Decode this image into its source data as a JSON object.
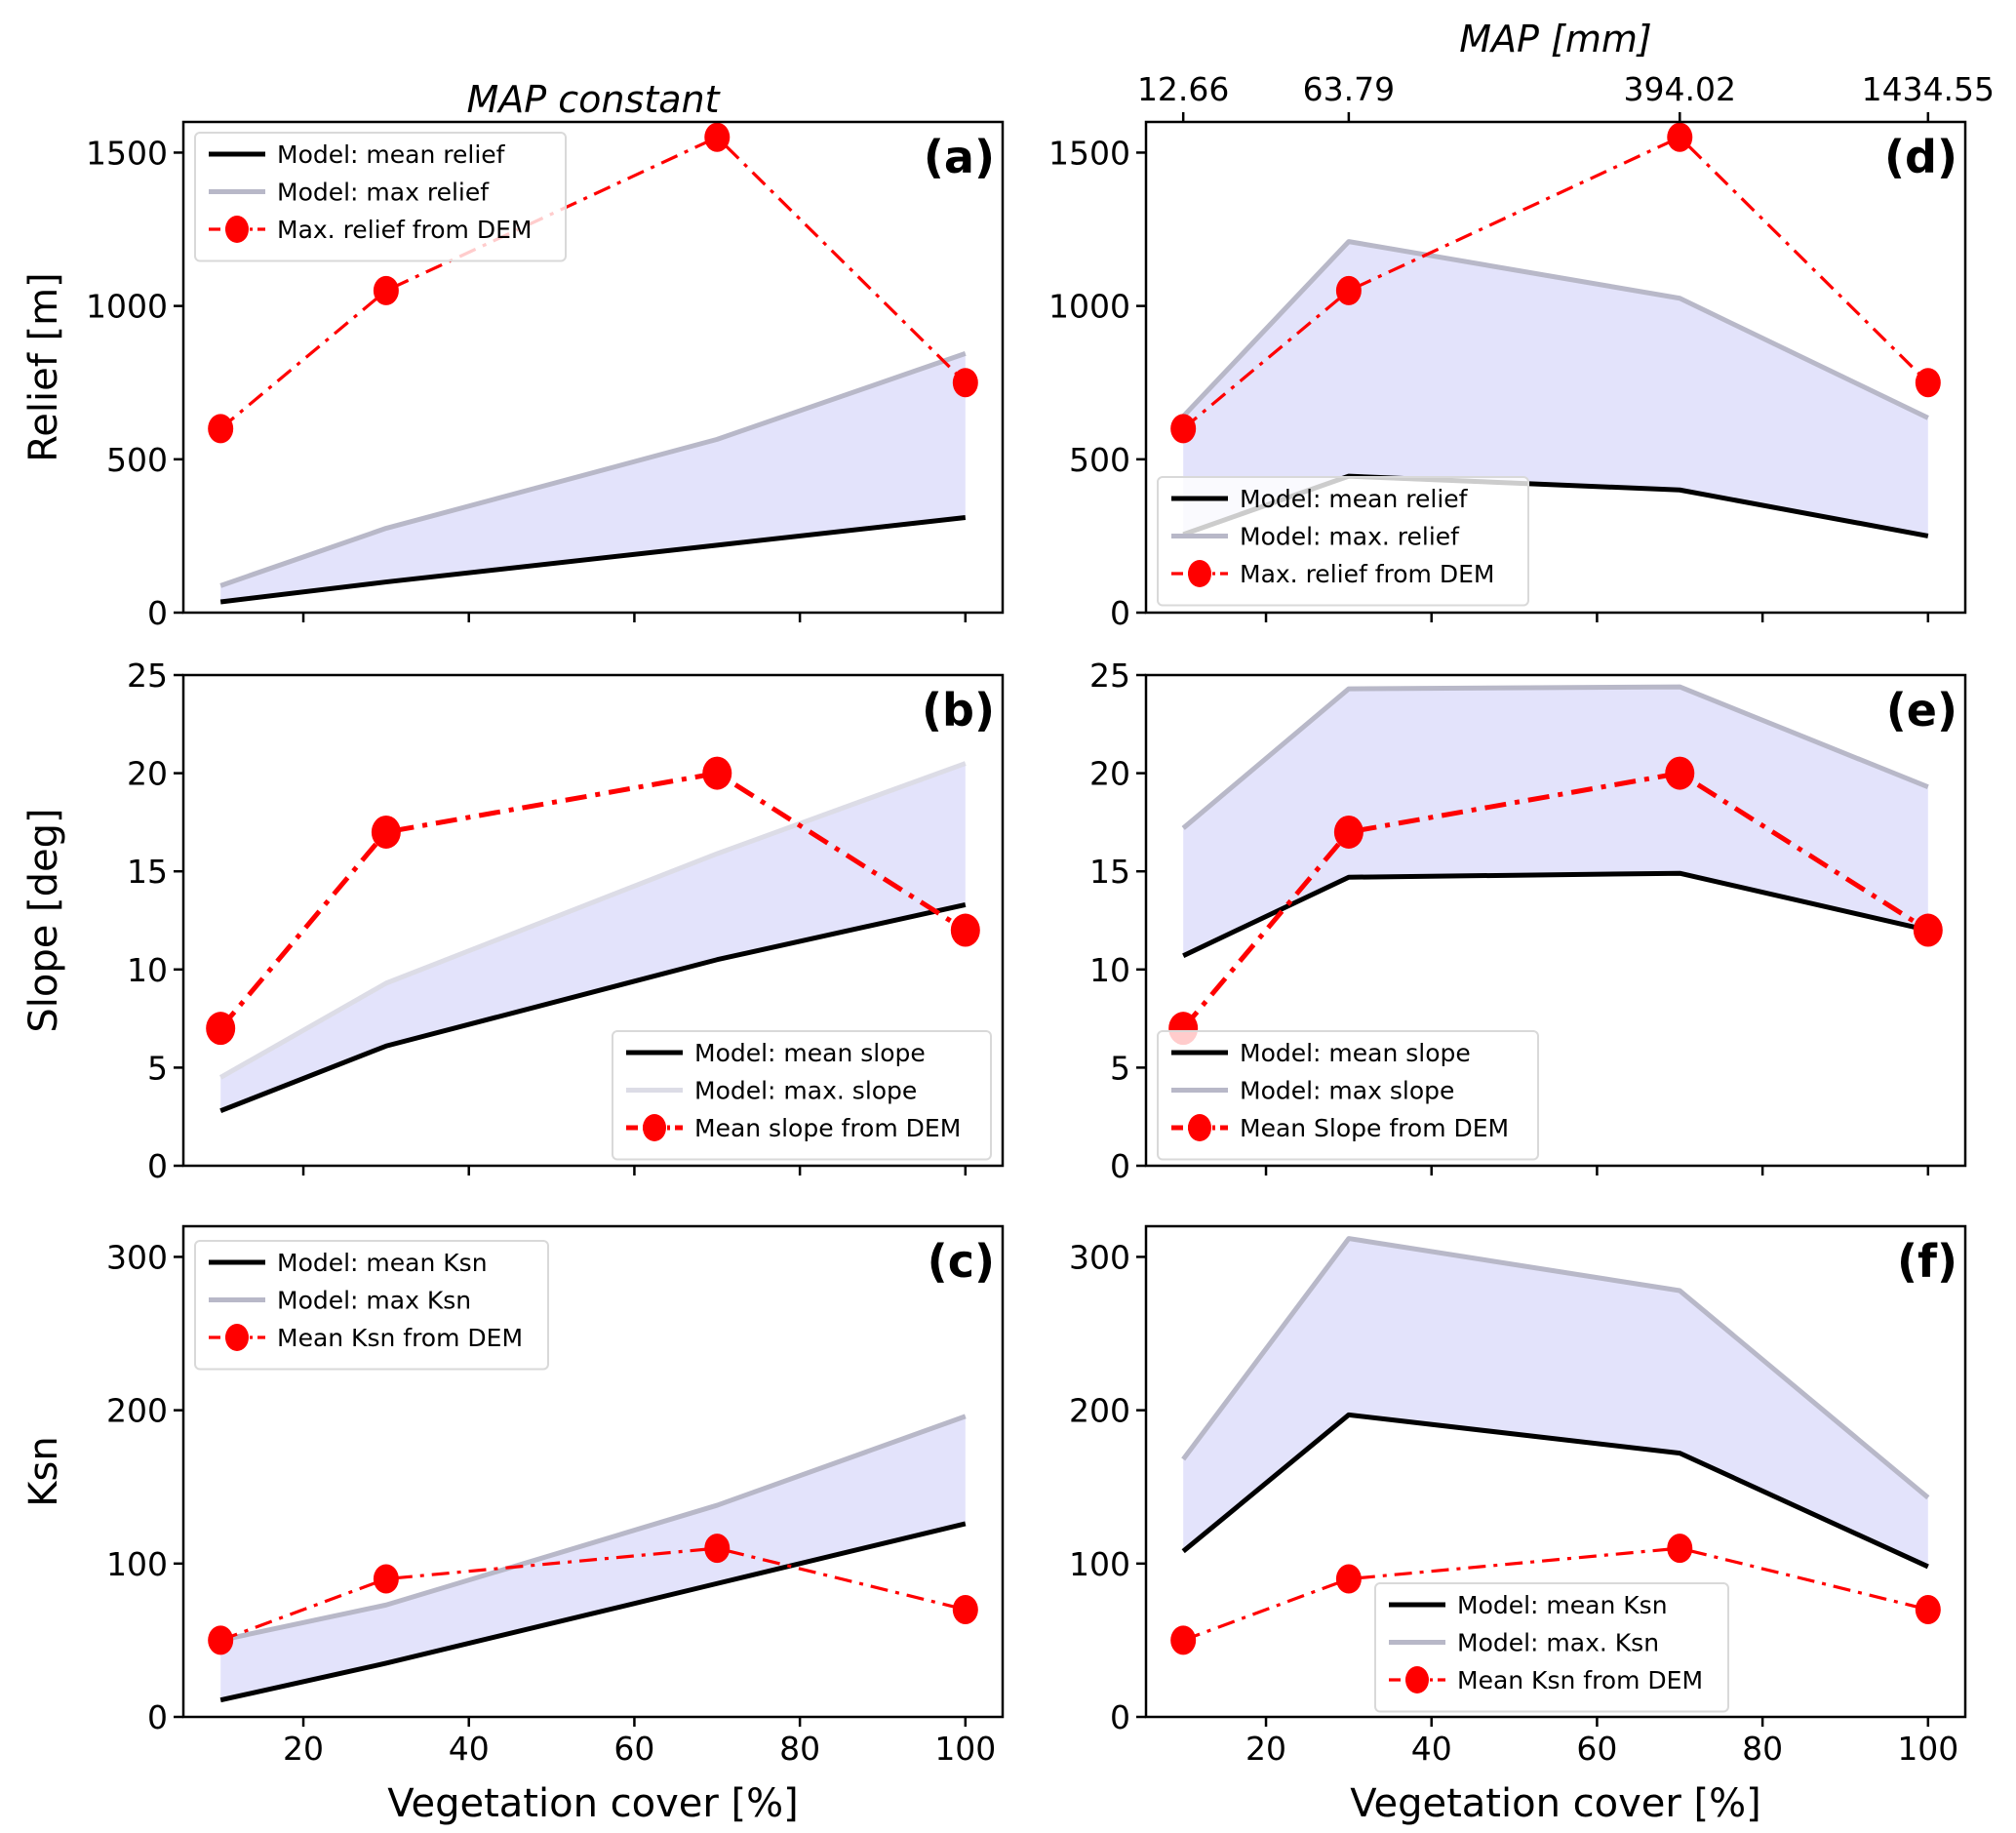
{
  "chart_data": [
    {
      "id": "a",
      "type": "line",
      "panel_label": "(a)",
      "title": "MAP constant",
      "xlabel": "",
      "ylabel": "Relief [m]",
      "x": [
        10,
        30,
        70,
        100
      ],
      "xlim": [
        5.5,
        104.5
      ],
      "ylim": [
        0,
        1600
      ],
      "xticks": [
        20,
        40,
        60,
        80,
        100
      ],
      "xticklabels_visible": false,
      "yticks": [
        0,
        500,
        1000,
        1500
      ],
      "legend_position": "top-left",
      "series": [
        {
          "name": "Model: mean relief",
          "style": "mean",
          "values": [
            35,
            100,
            220,
            310
          ]
        },
        {
          "name": "Model: max relief",
          "style": "max",
          "values": [
            88,
            275,
            565,
            845
          ]
        },
        {
          "name": "Max. relief from DEM",
          "style": "dem",
          "values": [
            600,
            1050,
            1550,
            750
          ]
        }
      ],
      "fill_between": [
        "Model: mean relief",
        "Model: max relief"
      ]
    },
    {
      "id": "b",
      "type": "line",
      "panel_label": "(b)",
      "title": "",
      "xlabel": "",
      "ylabel": "Slope [deg]",
      "x": [
        10,
        30,
        70,
        100
      ],
      "xlim": [
        5.5,
        104.5
      ],
      "ylim": [
        0,
        25
      ],
      "xticks": [
        20,
        40,
        60,
        80,
        100
      ],
      "xticklabels_visible": false,
      "yticks": [
        0,
        5,
        10,
        15,
        20,
        25
      ],
      "legend_position": "bottom-right",
      "series": [
        {
          "name": "Model: mean slope",
          "style": "mean",
          "values": [
            2.8,
            6.1,
            10.5,
            13.3
          ]
        },
        {
          "name": "Model: max. slope",
          "style": "max-light",
          "values": [
            4.5,
            9.3,
            15.9,
            20.5
          ]
        },
        {
          "name": "Mean slope from DEM",
          "style": "dem-bold",
          "values": [
            7,
            17,
            20,
            12
          ]
        }
      ],
      "fill_between": [
        "Model: mean slope",
        "Model: max. slope"
      ]
    },
    {
      "id": "c",
      "type": "line",
      "panel_label": "(c)",
      "title": "",
      "xlabel": "Vegetation cover [%]",
      "ylabel": "Ksn",
      "x": [
        10,
        30,
        70,
        100
      ],
      "xlim": [
        5.5,
        104.5
      ],
      "ylim": [
        0,
        320
      ],
      "xticks": [
        20,
        40,
        60,
        80,
        100
      ],
      "xticklabels_visible": true,
      "yticks": [
        0,
        100,
        200,
        300
      ],
      "legend_position": "top-left",
      "series": [
        {
          "name": "Model: mean Ksn",
          "style": "mean",
          "values": [
            11,
            35,
            87,
            126
          ]
        },
        {
          "name": "Model: max Ksn",
          "style": "max",
          "values": [
            50,
            73,
            138,
            196
          ]
        },
        {
          "name": "Mean Ksn from DEM",
          "style": "dem",
          "values": [
            50,
            90,
            110,
            70
          ]
        }
      ],
      "fill_between": [
        "Model: mean Ksn",
        "Model: max Ksn"
      ]
    },
    {
      "id": "d",
      "type": "line",
      "panel_label": "(d)",
      "title": "MAP [mm]",
      "secondary_xticks": [
        10,
        30,
        70,
        100
      ],
      "secondary_xticklabels": [
        "12.66",
        "63.79",
        "394.02",
        "1434.55"
      ],
      "xlabel": "",
      "ylabel": "",
      "x": [
        10,
        30,
        70,
        100
      ],
      "xlim": [
        5.5,
        104.5
      ],
      "ylim": [
        0,
        1600
      ],
      "xticks": [
        20,
        40,
        60,
        80,
        100
      ],
      "xticklabels_visible": false,
      "yticks": [
        0,
        500,
        1000,
        1500
      ],
      "legend_position": "bottom-left",
      "series": [
        {
          "name": "Model: mean relief",
          "style": "mean",
          "values": [
            255,
            445,
            400,
            250
          ]
        },
        {
          "name": "Model: max. relief",
          "style": "max",
          "values": [
            640,
            1210,
            1025,
            635
          ]
        },
        {
          "name": "Max. relief from DEM",
          "style": "dem",
          "values": [
            600,
            1050,
            1550,
            750
          ]
        }
      ],
      "fill_between": [
        "Model: mean relief",
        "Model: max. relief"
      ]
    },
    {
      "id": "e",
      "type": "line",
      "panel_label": "(e)",
      "title": "",
      "xlabel": "",
      "ylabel": "",
      "x": [
        10,
        30,
        70,
        100
      ],
      "xlim": [
        5.5,
        104.5
      ],
      "ylim": [
        0,
        25
      ],
      "xticks": [
        20,
        40,
        60,
        80,
        100
      ],
      "xticklabels_visible": false,
      "yticks": [
        0,
        5,
        10,
        15,
        20,
        25
      ],
      "legend_position": "bottom-left",
      "series": [
        {
          "name": "Model: mean slope",
          "style": "mean",
          "values": [
            10.7,
            14.7,
            14.9,
            12.0
          ]
        },
        {
          "name": "Model: max slope",
          "style": "max",
          "values": [
            17.2,
            24.3,
            24.4,
            19.3
          ]
        },
        {
          "name": "Mean Slope from DEM",
          "style": "dem-bold",
          "values": [
            7,
            17,
            20,
            12
          ]
        }
      ],
      "fill_between": [
        "Model: mean slope",
        "Model: max slope"
      ]
    },
    {
      "id": "f",
      "type": "line",
      "panel_label": "(f)",
      "title": "",
      "xlabel": "Vegetation cover [%]",
      "ylabel": "",
      "x": [
        10,
        30,
        70,
        100
      ],
      "xlim": [
        5.5,
        104.5
      ],
      "ylim": [
        0,
        320
      ],
      "xticks": [
        20,
        40,
        60,
        80,
        100
      ],
      "xticklabels_visible": true,
      "yticks": [
        0,
        100,
        200,
        300
      ],
      "legend_position": "bottom-center",
      "series": [
        {
          "name": "Model: mean Ksn",
          "style": "mean",
          "values": [
            108,
            197,
            172,
            98
          ]
        },
        {
          "name": "Model: max. Ksn",
          "style": "max",
          "values": [
            168,
            312,
            278,
            143
          ]
        },
        {
          "name": "Mean Ksn from DEM",
          "style": "dem",
          "values": [
            50,
            90,
            110,
            70
          ]
        }
      ],
      "fill_between": [
        "Model: mean Ksn",
        "Model: max. Ksn"
      ]
    }
  ],
  "colors": {
    "mean_line": "#000000",
    "max_line": "#b8b8c8",
    "max_line_light": "#dcdce6",
    "fill": "#e3e3fb",
    "dem": "#ff0000",
    "axis": "#000000",
    "legend_border": "#d9d9d9"
  }
}
